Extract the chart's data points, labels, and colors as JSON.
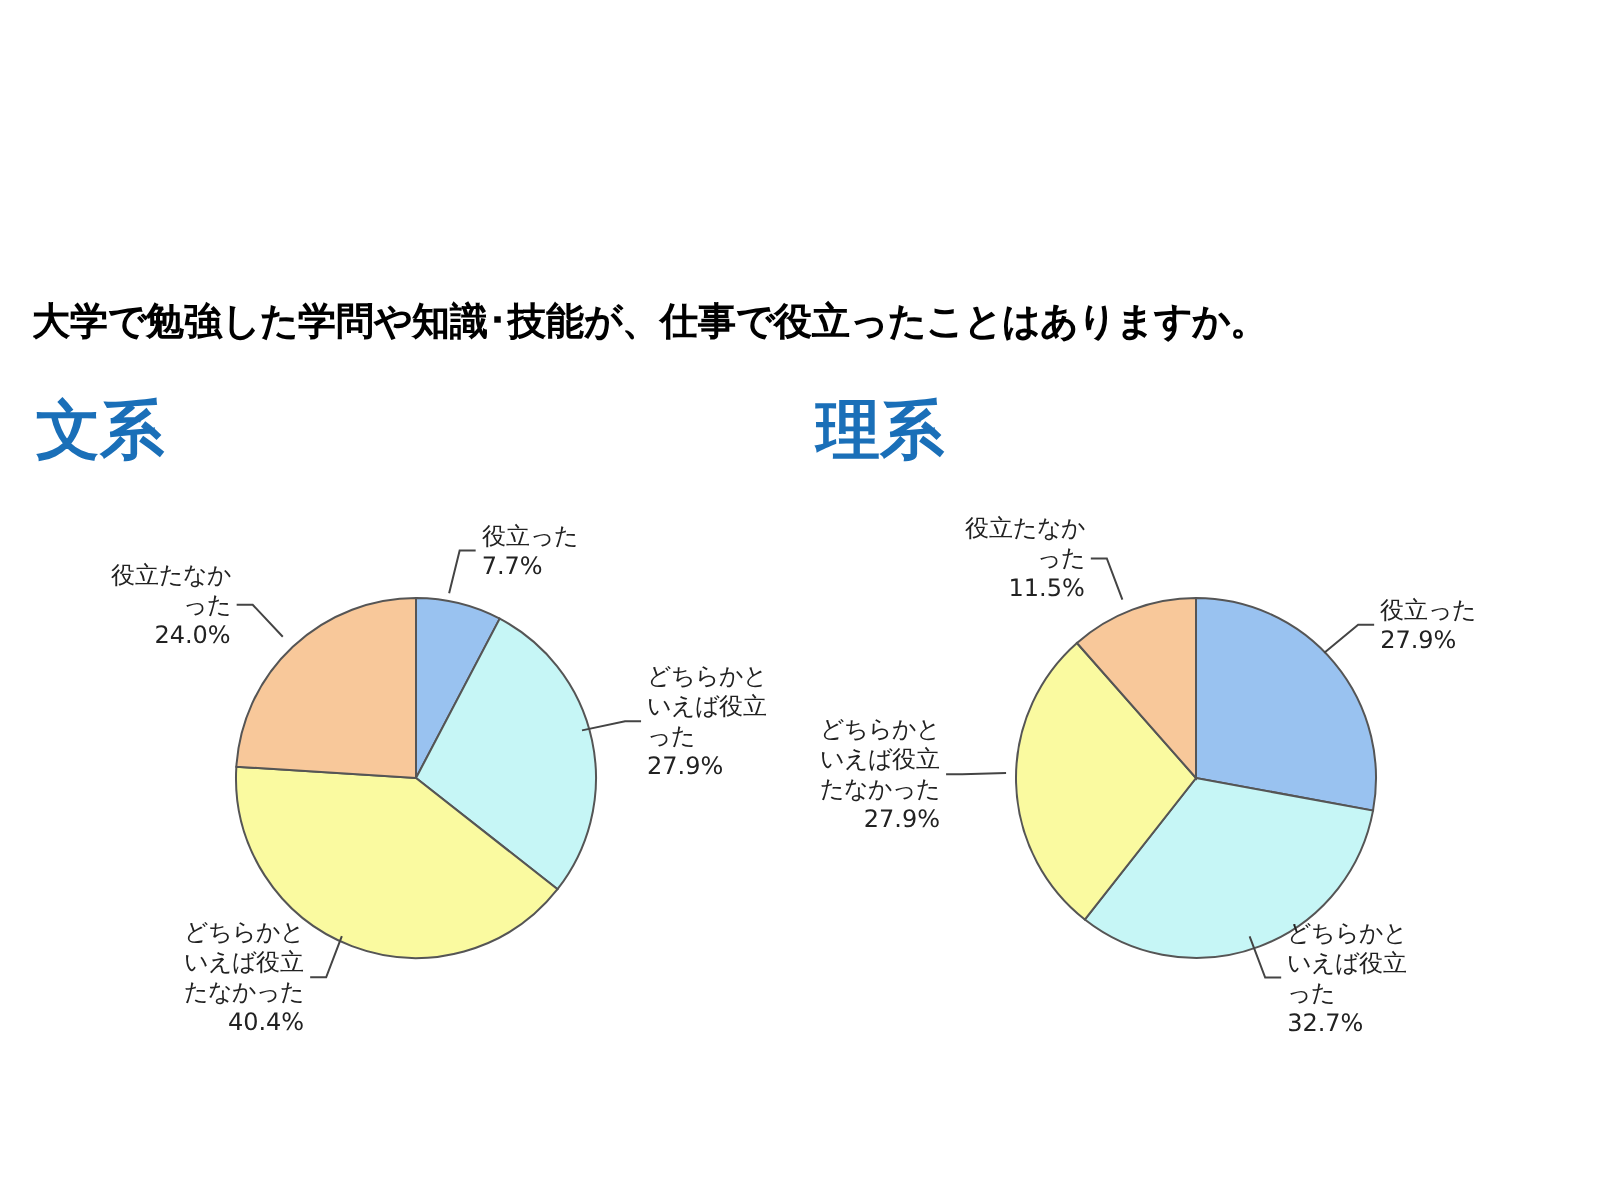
{
  "chart_data": [
    {
      "type": "pie",
      "title": "大学で勉強した学問や知識･技能が、仕事で役立ったことはありますか。",
      "subtitle": "文系",
      "categories": [
        "役立った",
        "どちらかといえば役立った",
        "どちらかといえば役立たなかった",
        "役立たなかった"
      ],
      "values": [
        7.7,
        27.9,
        40.4,
        24.0
      ],
      "value_labels": [
        "7.7%",
        "27.9%",
        "40.4%",
        "24.0%"
      ],
      "colors": [
        "#99c2f0",
        "#c6f6f6",
        "#fafaa0",
        "#f8c89a"
      ]
    },
    {
      "type": "pie",
      "subtitle": "理系",
      "categories": [
        "役立った",
        "どちらかといえば役立った",
        "どちらかといえば役立たなかった",
        "役立たなかった"
      ],
      "values": [
        27.9,
        32.7,
        27.9,
        11.5
      ],
      "value_labels": [
        "27.9%",
        "32.7%",
        "27.9%",
        "11.5%"
      ],
      "colors": [
        "#99c2f0",
        "#c6f6f6",
        "#fafaa0",
        "#f8c89a"
      ]
    }
  ]
}
